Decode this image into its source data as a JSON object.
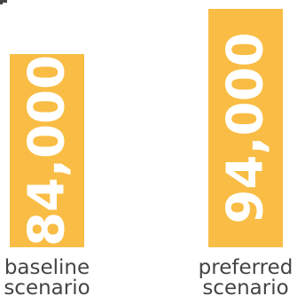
{
  "chart_data": {
    "type": "bar",
    "categories": [
      [
        "baseline",
        "scenario"
      ],
      [
        "preferred",
        "scenario"
      ]
    ],
    "values": [
      84000,
      94000
    ],
    "value_labels": [
      "84,000",
      "94,000"
    ],
    "bar_color": "#F9BD45",
    "label_color": "#FFFFFF",
    "category_label_color": "#444444",
    "ylim": [
      0,
      100000
    ],
    "grid": false,
    "legend": "none"
  }
}
